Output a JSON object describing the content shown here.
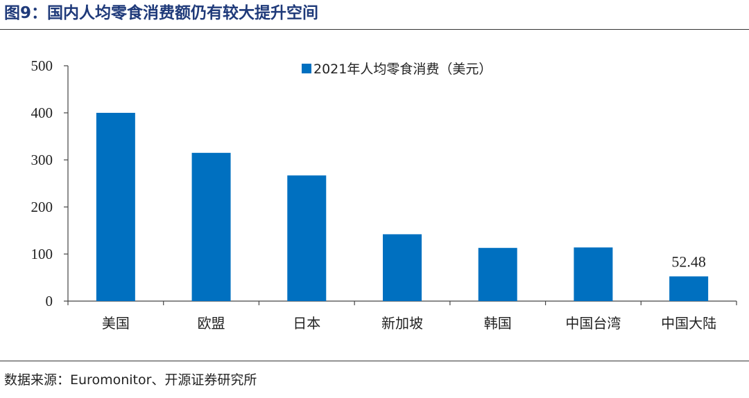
{
  "figure": {
    "title": "图9：国内人均零食消费额仍有较大提升空间",
    "source": "数据来源：Euromonitor、开源证券研究所"
  },
  "colors": {
    "bar": "#0070C0",
    "axis": "#444444",
    "title": "#1f3a7a"
  },
  "chart_data": {
    "type": "bar",
    "categories": [
      "美国",
      "欧盟",
      "日本",
      "新加坡",
      "韩国",
      "中国台湾",
      "中国大陆"
    ],
    "series": [
      {
        "name": "2021年人均零食消费（美元）",
        "values": [
          400,
          315,
          267,
          142,
          113,
          114,
          52.48
        ]
      }
    ],
    "data_labels": [
      null,
      null,
      null,
      null,
      null,
      null,
      "52.48"
    ],
    "ylim": [
      0,
      500
    ],
    "yticks": [
      0,
      100,
      200,
      300,
      400,
      500
    ],
    "grid": false,
    "legend": "top-center",
    "xlabel": "",
    "ylabel": ""
  }
}
